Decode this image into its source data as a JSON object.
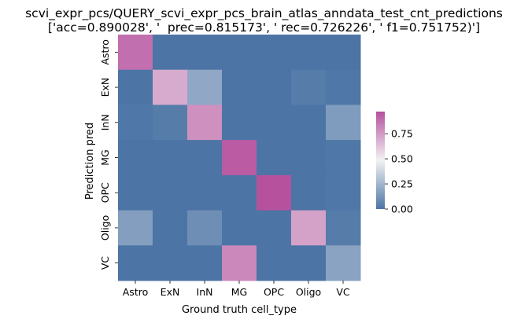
{
  "chart_data": {
    "type": "heatmap",
    "title": "scvi_expr_pcs/QUERY_scvi_expr_pcs_brain_atlas_anndata_test_cnt_predictions",
    "subtitle": "['acc=0.890028', '  prec=0.815173', ' rec=0.726226', ' f1=0.751752)']",
    "xlabel": "Ground truth cell_type",
    "ylabel": "Prediction pred",
    "x_categories": [
      "Astro",
      "ExN",
      "InN",
      "MG",
      "OPC",
      "Oligo",
      "VC"
    ],
    "y_categories": [
      "Astro",
      "ExN",
      "InN",
      "MG",
      "OPC",
      "Oligo",
      "VC"
    ],
    "values": [
      [
        0.88,
        0.0,
        0.0,
        0.0,
        0.0,
        0.0,
        0.0
      ],
      [
        0.0,
        0.7,
        0.2,
        0.0,
        0.0,
        0.03,
        0.01
      ],
      [
        0.01,
        0.03,
        0.78,
        0.0,
        0.0,
        0.0,
        0.15
      ],
      [
        0.0,
        0.0,
        0.0,
        0.94,
        0.0,
        0.0,
        0.01
      ],
      [
        0.0,
        0.0,
        0.0,
        0.0,
        0.97,
        0.0,
        0.01
      ],
      [
        0.16,
        0.0,
        0.1,
        0.0,
        0.0,
        0.73,
        0.03
      ],
      [
        0.0,
        0.0,
        0.0,
        0.8,
        0.0,
        0.0,
        0.18
      ]
    ],
    "colorbar": {
      "min": 0.0,
      "max": 0.97,
      "ticks": [
        0.0,
        0.25,
        0.5,
        0.75
      ],
      "tick_labels": [
        "0.00",
        "0.25",
        "0.50",
        "0.75"
      ]
    },
    "colormap": {
      "low": "#4c74a5",
      "mid": "#f2f2f2",
      "high": "#b6519e"
    }
  }
}
